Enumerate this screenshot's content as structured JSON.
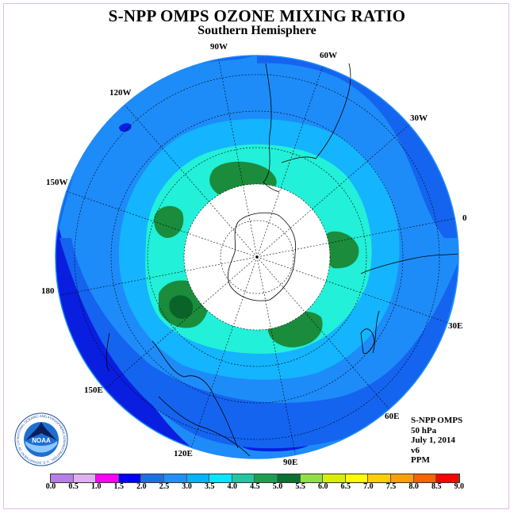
{
  "title": "S-NPP OMPS OZONE MIXING RATIO",
  "subtitle": "Southern Hemisphere",
  "longitude_labels": [
    "90W",
    "60W",
    "120W",
    "30W",
    "150W",
    "0",
    "180",
    "30E",
    "150E",
    "60E",
    "120E",
    "90E"
  ],
  "info": {
    "instrument": "S-NPP OMPS",
    "level": "50 hPa",
    "date": "July 1, 2014",
    "version": "v6",
    "units": "PPM"
  },
  "colorbar": {
    "ticks": [
      "0.0",
      "0.5",
      "1.0",
      "1.5",
      "2.0",
      "2.5",
      "3.0",
      "3.5",
      "4.0",
      "4.5",
      "5.0",
      "5.5",
      "6.0",
      "6.5",
      "7.0",
      "7.5",
      "8.0",
      "8.5",
      "9.0"
    ],
    "colors": [
      "#b87ee8",
      "#e0b0f0",
      "#ff00ff",
      "#0000ff",
      "#1a6fe8",
      "#1e90ff",
      "#00b4ff",
      "#00e8ff",
      "#1ec8a0",
      "#1aa050",
      "#0a7030",
      "#90e040",
      "#d8f000",
      "#ffff00",
      "#ffd000",
      "#ffa000",
      "#ff6000",
      "#ff0000",
      "#8b5a3c"
    ]
  },
  "map_colors": {
    "level_2_0": "#0a1ee0",
    "level_2_5": "#1464f0",
    "level_3_0": "#1e8cf8",
    "level_3_5": "#14b4ff",
    "level_4_0": "#22f0d8",
    "level_4_5": "#1a8c3c",
    "level_5_0": "#0a6428",
    "no_data": "#ffffff"
  },
  "logo": {
    "text": "NOAA",
    "ring_text": "NATIONAL OCEANIC AND ATMOSPHERIC ADMINISTRATION · U.S. DEPARTMENT OF COMMERCE"
  }
}
